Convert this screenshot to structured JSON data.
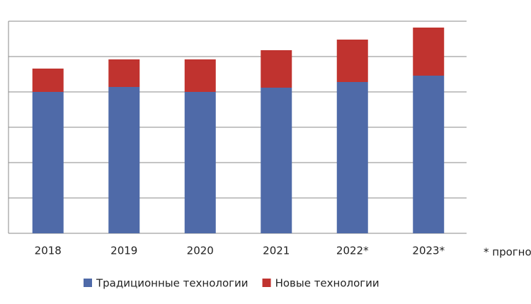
{
  "chart_data": {
    "type": "stacked_bar",
    "categories": [
      "2018",
      "2019",
      "2020",
      "2021",
      "2022*",
      "2023*"
    ],
    "series": [
      {
        "name": "Традиционные технологии",
        "color": "#4f6aa8",
        "values": [
          4.0,
          4.14,
          4.0,
          4.12,
          4.28,
          4.46
        ]
      },
      {
        "name": "Новые технологии",
        "color": "#c0332f",
        "values": [
          0.66,
          0.78,
          0.92,
          1.06,
          1.2,
          1.36
        ]
      }
    ],
    "ylim": [
      0,
      6
    ],
    "yticks": [
      0,
      1,
      2,
      3,
      4,
      5,
      6
    ],
    "grid": true,
    "note": "* прогноз",
    "legend": "bottom"
  }
}
